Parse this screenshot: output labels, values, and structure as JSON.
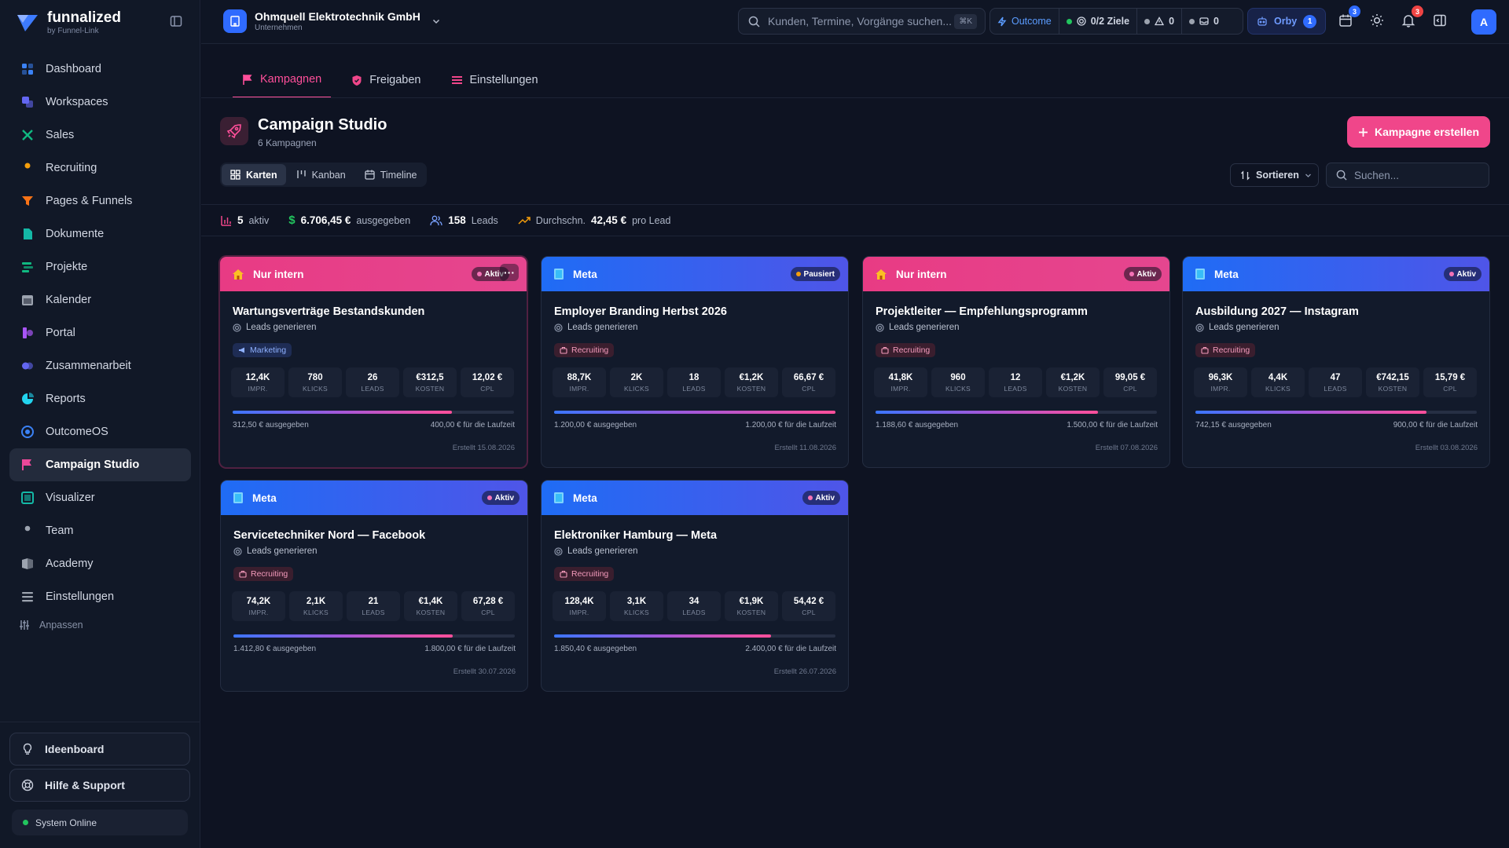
{
  "brand": {
    "name": "funnalized",
    "sub": "by Funnel-Link"
  },
  "sidebar": {
    "items": [
      {
        "label": "Dashboard",
        "icon": "dashboard-icon",
        "color": "#3b82f6"
      },
      {
        "label": "Workspaces",
        "icon": "workspaces-icon",
        "color": "#6366f1"
      },
      {
        "label": "Sales",
        "icon": "sales-icon",
        "color": "#10b981"
      },
      {
        "label": "Recruiting",
        "icon": "recruiting-icon",
        "color": "#f59e0b"
      },
      {
        "label": "Pages & Funnels",
        "icon": "funnel-icon",
        "color": "#f97316"
      },
      {
        "label": "Dokumente",
        "icon": "document-icon",
        "color": "#14b8a6"
      },
      {
        "label": "Projekte",
        "icon": "projects-icon",
        "color": "#10b981"
      },
      {
        "label": "Kalender",
        "icon": "calendar-icon",
        "color": "#9ca3af"
      },
      {
        "label": "Portal",
        "icon": "portal-icon",
        "color": "#a855f7"
      },
      {
        "label": "Zusammenarbeit",
        "icon": "collaboration-icon",
        "color": "#6366f1"
      },
      {
        "label": "Reports",
        "icon": "reports-icon",
        "color": "#22d3ee"
      },
      {
        "label": "OutcomeOS",
        "icon": "outcome-icon",
        "color": "#3b82f6"
      },
      {
        "label": "Campaign Studio",
        "icon": "flag-icon",
        "color": "#ec4899",
        "active": true
      },
      {
        "label": "Visualizer",
        "icon": "visualizer-icon",
        "color": "#14b8a6"
      },
      {
        "label": "Team",
        "icon": "team-icon",
        "color": "#9ca3af"
      },
      {
        "label": "Academy",
        "icon": "academy-icon",
        "color": "#9ca3af"
      },
      {
        "label": "Einstellungen",
        "icon": "settings-icon",
        "color": "#9ca3af"
      }
    ],
    "adjust": "Anpassen",
    "ideenboard": "Ideenboard",
    "help": "Hilfe & Support",
    "status": "System Online"
  },
  "topbar": {
    "org_name": "Ohmquell Elektrotechnik GmbH",
    "org_sub": "Unternehmen",
    "search_placeholder": "Kunden, Termine, Vorgänge suchen...",
    "search_shortcut": "⌘K",
    "outcome": "Outcome",
    "goals": "0/2 Ziele",
    "alerts": "0",
    "messages": "0",
    "orby": "Orby",
    "orby_count": "1",
    "calendar_badge": "3",
    "bell_badge": "3",
    "avatar": "A"
  },
  "tabs": [
    "Kampagnen",
    "Freigaben",
    "Einstellungen"
  ],
  "header": {
    "title": "Campaign Studio",
    "subtitle": "6 Kampagnen",
    "create": "Kampagne erstellen",
    "views": [
      "Karten",
      "Kanban",
      "Timeline"
    ],
    "sort": "Sortieren",
    "search_placeholder": "Suchen..."
  },
  "stats": {
    "active_value": "5",
    "active_label": "aktiv",
    "spent_value": "6.706,45 €",
    "spent_label": "ausgegeben",
    "leads_value": "158",
    "leads_label": "Leads",
    "avg_label": "Durchschn.",
    "avg_value": "42,45 €",
    "avg_suffix": "pro Lead"
  },
  "metric_labels": [
    "IMPR.",
    "KLICKS",
    "LEADS",
    "KOSTEN",
    "CPL"
  ],
  "campaigns": [
    {
      "channel": "Nur intern",
      "head": "pink",
      "status": "Aktiv",
      "status_color": "#f472b6",
      "title": "Wartungsverträge Bestandskunden",
      "goal": "Leads generieren",
      "tag": "Marketing",
      "tag_kind": "mkt",
      "metrics": [
        "12,4K",
        "780",
        "26",
        "€312,5",
        "12,02 €"
      ],
      "progress": 0.78,
      "spent": "312,50 € ausgegeben",
      "budget": "400,00 € für die Laufzeit",
      "created": "Erstellt 15.08.2026"
    },
    {
      "channel": "Meta",
      "head": "blue",
      "status": "Pausiert",
      "status_color": "#f59e0b",
      "title": "Employer Branding Herbst 2026",
      "goal": "Leads generieren",
      "tag": "Recruiting",
      "tag_kind": "rec",
      "metrics": [
        "88,7K",
        "2K",
        "18",
        "€1,2K",
        "66,67 €"
      ],
      "progress": 1.0,
      "spent": "1.200,00 € ausgegeben",
      "budget": "1.200,00 € für die Laufzeit",
      "created": "Erstellt 11.08.2026"
    },
    {
      "channel": "Nur intern",
      "head": "pink",
      "status": "Aktiv",
      "status_color": "#f472b6",
      "title": "Projektleiter — Empfehlungsprogramm",
      "goal": "Leads generieren",
      "tag": "Recruiting",
      "tag_kind": "rec",
      "metrics": [
        "41,8K",
        "960",
        "12",
        "€1,2K",
        "99,05 €"
      ],
      "progress": 0.79,
      "spent": "1.188,60 € ausgegeben",
      "budget": "1.500,00 € für die Laufzeit",
      "created": "Erstellt 07.08.2026"
    },
    {
      "channel": "Meta",
      "head": "blue",
      "status": "Aktiv",
      "status_color": "#f472b6",
      "title": "Ausbildung 2027 — Instagram",
      "goal": "Leads generieren",
      "tag": "Recruiting",
      "tag_kind": "rec",
      "metrics": [
        "96,3K",
        "4,4K",
        "47",
        "€742,15",
        "15,79 €"
      ],
      "progress": 0.82,
      "spent": "742,15 € ausgegeben",
      "budget": "900,00 € für die Laufzeit",
      "created": "Erstellt 03.08.2026"
    },
    {
      "channel": "Meta",
      "head": "blue",
      "status": "Aktiv",
      "status_color": "#f472b6",
      "title": "Servicetechniker Nord — Facebook",
      "goal": "Leads generieren",
      "tag": "Recruiting",
      "tag_kind": "rec",
      "metrics": [
        "74,2K",
        "2,1K",
        "21",
        "€1,4K",
        "67,28 €"
      ],
      "progress": 0.78,
      "spent": "1.412,80 € ausgegeben",
      "budget": "1.800,00 € für die Laufzeit",
      "created": "Erstellt 30.07.2026"
    },
    {
      "channel": "Meta",
      "head": "blue",
      "status": "Aktiv",
      "status_color": "#f472b6",
      "title": "Elektroniker Hamburg — Meta",
      "goal": "Leads generieren",
      "tag": "Recruiting",
      "tag_kind": "rec",
      "metrics": [
        "128,4K",
        "3,1K",
        "34",
        "€1,9K",
        "54,42 €"
      ],
      "progress": 0.77,
      "spent": "1.850,40 € ausgegeben",
      "budget": "2.400,00 € für die Laufzeit",
      "created": "Erstellt 26.07.2026"
    }
  ]
}
